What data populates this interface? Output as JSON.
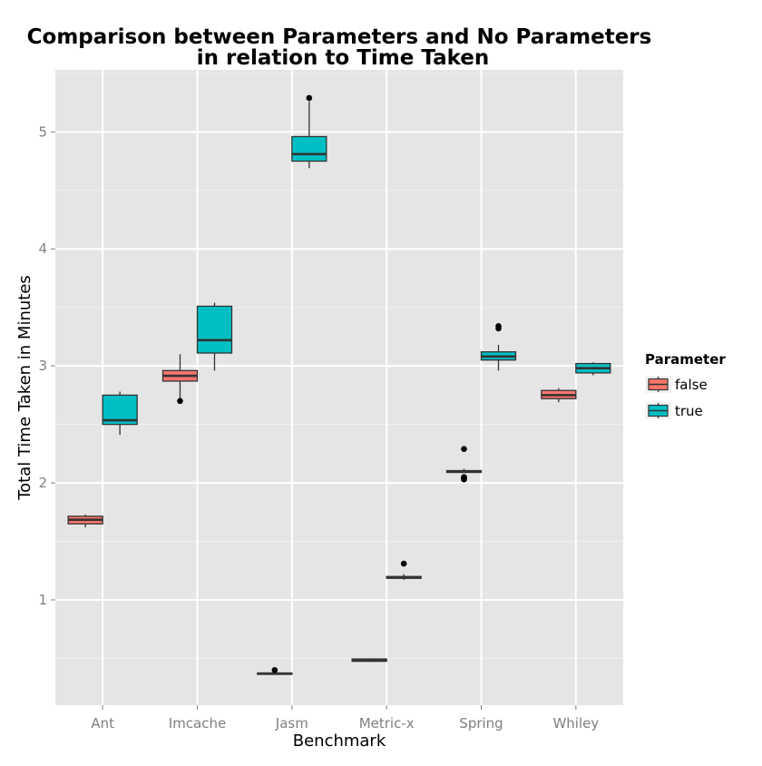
{
  "chart_data": {
    "type": "box",
    "title_lines": [
      "Comparison between Parameters and No Parameters",
      "in relation to Time Taken"
    ],
    "xlabel": "Benchmark",
    "ylabel": "Total Time Taken in Minutes",
    "categories": [
      "Ant",
      "Imcache",
      "Jasm",
      "Metric-x",
      "Spring",
      "Whiley"
    ],
    "y_range": [
      0.1,
      5.53
    ],
    "y_ticks": [
      1,
      2,
      3,
      4,
      5
    ],
    "grid": true,
    "legend": {
      "title": "Parameter",
      "placement": "right",
      "entries": [
        {
          "name": "false",
          "color": "#F8766D"
        },
        {
          "name": "true",
          "color": "#00BFC4"
        }
      ]
    },
    "series": [
      {
        "name": "false",
        "color": "#F8766D",
        "boxes": [
          {
            "category": "Ant",
            "min": 1.62,
            "q1": 1.65,
            "median": 1.685,
            "q3": 1.715,
            "max": 1.73,
            "outliers": []
          },
          {
            "category": "Imcache",
            "min": 2.72,
            "q1": 2.87,
            "median": 2.915,
            "q3": 2.96,
            "max": 3.1,
            "outliers": [
              2.7
            ]
          },
          {
            "category": "Jasm",
            "min": 0.36,
            "q1": 0.365,
            "median": 0.37,
            "q3": 0.375,
            "max": 0.38,
            "outliers": [
              0.4
            ]
          },
          {
            "category": "Metric-x",
            "min": 0.47,
            "q1": 0.475,
            "median": 0.485,
            "q3": 0.495,
            "max": 0.5,
            "outliers": []
          },
          {
            "category": "Spring",
            "min": 2.085,
            "q1": 2.09,
            "median": 2.095,
            "q3": 2.105,
            "max": 2.12,
            "outliers": [
              2.29,
              2.05,
              2.04,
              2.03
            ]
          },
          {
            "category": "Whiley",
            "min": 2.69,
            "q1": 2.72,
            "median": 2.75,
            "q3": 2.79,
            "max": 2.81,
            "outliers": []
          }
        ]
      },
      {
        "name": "true",
        "color": "#00BFC4",
        "boxes": [
          {
            "category": "Ant",
            "min": 2.41,
            "q1": 2.5,
            "median": 2.535,
            "q3": 2.75,
            "max": 2.78,
            "outliers": []
          },
          {
            "category": "Imcache",
            "min": 2.96,
            "q1": 3.11,
            "median": 3.22,
            "q3": 3.51,
            "max": 3.54,
            "outliers": []
          },
          {
            "category": "Jasm",
            "min": 4.69,
            "q1": 4.75,
            "median": 4.81,
            "q3": 4.96,
            "max": 5.26,
            "outliers": [
              5.29
            ]
          },
          {
            "category": "Metric-x",
            "min": 1.17,
            "q1": 1.185,
            "median": 1.19,
            "q3": 1.2,
            "max": 1.22,
            "outliers": [
              1.31
            ]
          },
          {
            "category": "Spring",
            "min": 2.96,
            "q1": 3.05,
            "median": 3.08,
            "q3": 3.12,
            "max": 3.18,
            "outliers": [
              3.32,
              3.34
            ]
          },
          {
            "category": "Whiley",
            "min": 2.92,
            "q1": 2.94,
            "median": 2.98,
            "q3": 3.02,
            "max": 3.03,
            "outliers": []
          }
        ]
      }
    ]
  }
}
